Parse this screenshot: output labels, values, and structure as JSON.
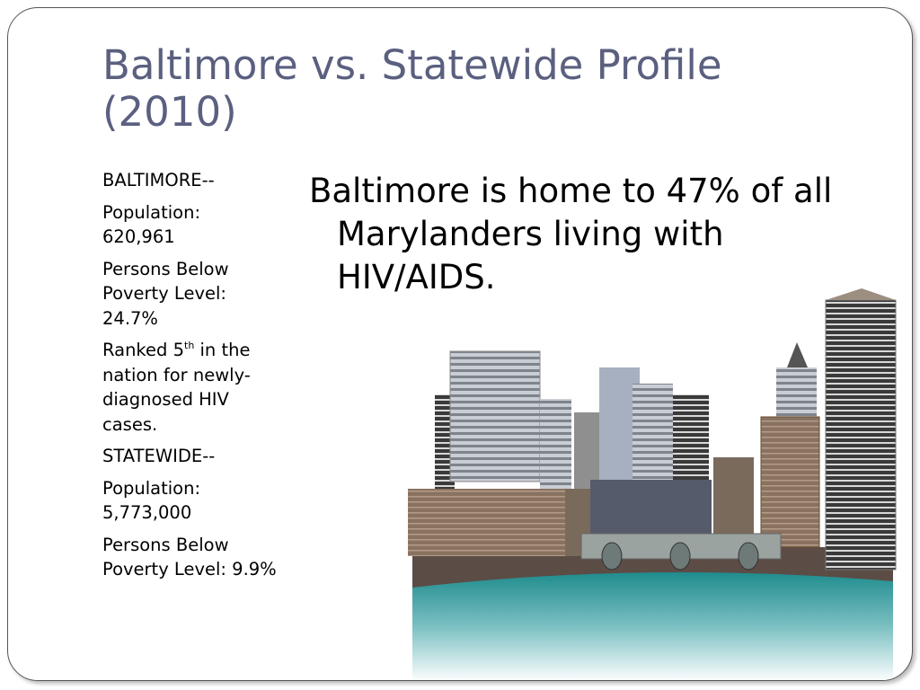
{
  "title": "Baltimore vs. Statewide Profile (2010)",
  "left_list": [
    {
      "text": "BALTIMORE--"
    },
    {
      "text": "Population: 620,961"
    },
    {
      "text": "Persons Below Poverty Level: 24.7%"
    },
    {
      "parts": [
        "Ranked 5",
        "th",
        " in the nation for newly-diagnosed HIV cases."
      ]
    },
    {
      "text": "STATEWIDE--"
    },
    {
      "text": "Population: 5,773,000"
    },
    {
      "text": "Persons Below Poverty Level: 9.9%"
    }
  ],
  "main_text": "Baltimore is home to 47% of all Marylanders living with HIV/AIDS."
}
